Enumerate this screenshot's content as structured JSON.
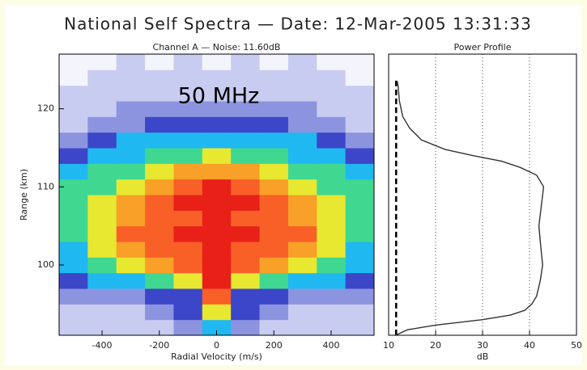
{
  "title": "National Self Spectra — Date: 12-Mar-2005 13:31:33",
  "chart_data": [
    {
      "type": "heatmap",
      "title": "Channel A — Noise: 11.60dB",
      "annotation": "50 MHz",
      "x_label": "Radial Velocity (m/s)",
      "y_label": "Range (km)",
      "xlim": [
        -550,
        550
      ],
      "ylim": [
        91,
        127
      ],
      "xticks": [
        -400,
        -200,
        0,
        200,
        400
      ],
      "yticks": [
        100,
        110,
        120
      ],
      "x_bins": [
        -550,
        -450,
        -350,
        -250,
        -150,
        -50,
        50,
        150,
        250,
        350,
        450,
        550
      ],
      "y_bins": [
        91,
        93,
        95,
        97,
        99,
        101,
        103,
        105,
        107,
        109,
        111,
        113,
        115,
        117,
        119,
        121,
        123,
        125,
        127
      ],
      "colorscale": [
        "#f4f4fc",
        "#c8ccf0",
        "#8c94e0",
        "#3c46c8",
        "#20b8f0",
        "#40d890",
        "#e8e830",
        "#f8a028",
        "#f86028",
        "#e82018"
      ],
      "values": [
        [
          1,
          1,
          1,
          1,
          2,
          4,
          2,
          1,
          1,
          1,
          1
        ],
        [
          1,
          1,
          1,
          2,
          3,
          6,
          3,
          2,
          1,
          1,
          1
        ],
        [
          2,
          2,
          2,
          3,
          3,
          8,
          3,
          3,
          2,
          2,
          2
        ],
        [
          3,
          4,
          4,
          5,
          6,
          9,
          6,
          5,
          4,
          4,
          3
        ],
        [
          4,
          5,
          6,
          7,
          8,
          9,
          8,
          7,
          6,
          5,
          4
        ],
        [
          4,
          6,
          7,
          8,
          8,
          9,
          8,
          8,
          7,
          6,
          4
        ],
        [
          5,
          6,
          8,
          8,
          9,
          9,
          9,
          8,
          8,
          6,
          5
        ],
        [
          5,
          6,
          7,
          8,
          8,
          9,
          8,
          8,
          7,
          6,
          5
        ],
        [
          5,
          6,
          7,
          8,
          9,
          9,
          9,
          8,
          7,
          6,
          5
        ],
        [
          5,
          5,
          6,
          7,
          8,
          9,
          8,
          7,
          6,
          5,
          5
        ],
        [
          4,
          5,
          5,
          6,
          7,
          7,
          7,
          6,
          5,
          5,
          4
        ],
        [
          3,
          4,
          4,
          5,
          5,
          6,
          5,
          5,
          4,
          4,
          3
        ],
        [
          2,
          3,
          4,
          4,
          4,
          4,
          4,
          4,
          4,
          3,
          2
        ],
        [
          1,
          2,
          2,
          3,
          3,
          3,
          3,
          3,
          2,
          2,
          1
        ],
        [
          1,
          1,
          2,
          2,
          2,
          2,
          2,
          2,
          2,
          1,
          1
        ],
        [
          1,
          1,
          1,
          1,
          1,
          1,
          1,
          1,
          1,
          1,
          1
        ],
        [
          0,
          1,
          1,
          1,
          1,
          1,
          1,
          1,
          1,
          1,
          0
        ],
        [
          0,
          0,
          1,
          0,
          1,
          0,
          1,
          0,
          1,
          0,
          0
        ]
      ]
    },
    {
      "type": "profile",
      "title": "Power Profile",
      "x_label": "dB",
      "xlim": [
        10,
        50
      ],
      "ylim": [
        91,
        127
      ],
      "xticks": [
        10,
        20,
        30,
        40,
        50
      ],
      "grid": true,
      "reference_line": 11.6,
      "color": "#333333",
      "y": [
        91,
        91.7,
        92.3,
        93,
        93.6,
        94.2,
        95,
        96,
        98,
        100,
        103,
        105,
        108,
        110,
        111.5,
        112.5,
        113.3,
        114,
        114.8,
        116,
        117.5,
        119,
        121,
        123,
        123.6
      ],
      "values": [
        11.5,
        14,
        20,
        30,
        36,
        39,
        40.5,
        41.5,
        42.3,
        42.8,
        42.3,
        42,
        42.6,
        43,
        41.5,
        38,
        34,
        28,
        22,
        17,
        14.5,
        13,
        12.3,
        12,
        11.8
      ]
    }
  ]
}
